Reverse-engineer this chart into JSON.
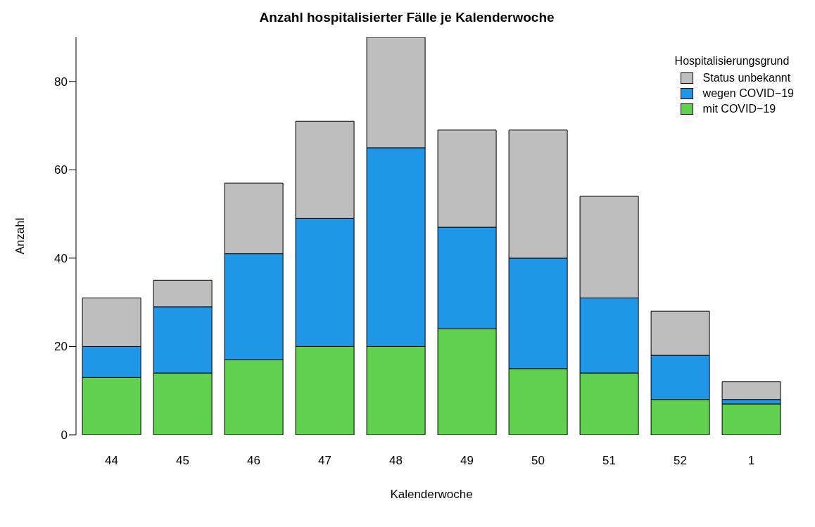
{
  "chart_data": {
    "type": "bar",
    "title": "Anzahl hospitalisierter Fälle je Kalenderwoche",
    "xlabel": "Kalenderwoche",
    "ylabel": "Anzahl",
    "legend_title": "Hospitalisierungsgrund",
    "categories": [
      "44",
      "45",
      "46",
      "47",
      "48",
      "49",
      "50",
      "51",
      "52",
      "1"
    ],
    "series": [
      {
        "name": "mit COVID−19",
        "color": "#5fd14f",
        "values": [
          13,
          14,
          17,
          20,
          20,
          24,
          15,
          14,
          8,
          7
        ]
      },
      {
        "name": "wegen COVID−19",
        "color": "#2096e6",
        "values": [
          7,
          15,
          24,
          29,
          45,
          23,
          25,
          17,
          10,
          1
        ]
      },
      {
        "name": "Status unbekannt",
        "color": "#bebebe",
        "values": [
          11,
          6,
          16,
          22,
          25,
          22,
          29,
          23,
          10,
          4
        ]
      }
    ],
    "stacked": true,
    "ylim": [
      0,
      90
    ],
    "yticks": [
      0,
      20,
      40,
      60,
      80
    ],
    "grid": false,
    "legend": "top right"
  }
}
